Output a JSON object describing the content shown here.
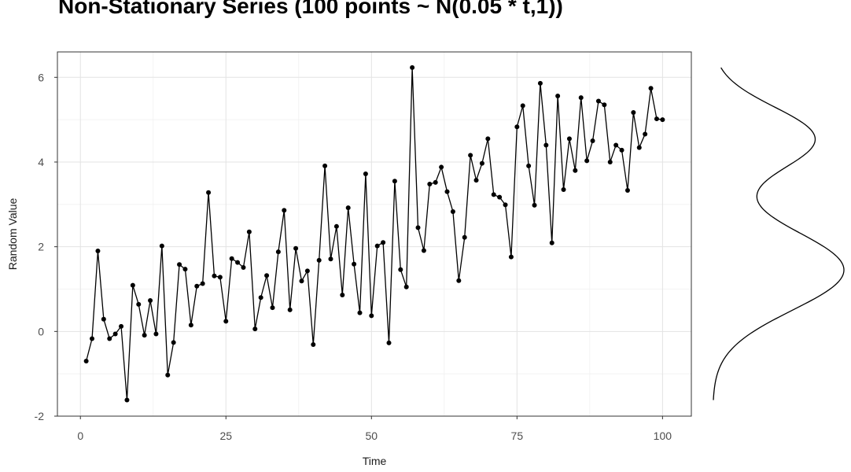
{
  "chart_data": {
    "type": "line",
    "title": "Non-Stationary Series (100 points ~ N(0.05 * t,1))",
    "xlabel": "Time",
    "ylabel": "Random Value",
    "xlim": [
      -3.95,
      104.95
    ],
    "ylim": [
      -2,
      6.6
    ],
    "x_ticks": [
      0,
      25,
      50,
      75,
      100
    ],
    "x_tick_labels": [
      "0",
      "25",
      "50",
      "75",
      "100"
    ],
    "y_ticks": [
      -2,
      0,
      2,
      4,
      6
    ],
    "y_tick_labels": [
      "-2",
      "0",
      "2",
      "4",
      "6"
    ],
    "grid": true,
    "markers": true,
    "series_color": "#000000",
    "x": [
      1,
      2,
      3,
      4,
      5,
      6,
      7,
      8,
      9,
      10,
      11,
      12,
      13,
      14,
      15,
      16,
      17,
      18,
      19,
      20,
      21,
      22,
      23,
      24,
      25,
      26,
      27,
      28,
      29,
      30,
      31,
      32,
      33,
      34,
      35,
      36,
      37,
      38,
      39,
      40,
      41,
      42,
      43,
      44,
      45,
      46,
      47,
      48,
      49,
      50,
      51,
      52,
      53,
      54,
      55,
      56,
      57,
      58,
      59,
      60,
      61,
      62,
      63,
      64,
      65,
      66,
      67,
      68,
      69,
      70,
      71,
      72,
      73,
      74,
      75,
      76,
      77,
      78,
      79,
      80,
      81,
      82,
      83,
      84,
      85,
      86,
      87,
      88,
      89,
      90,
      91,
      92,
      93,
      94,
      95,
      96,
      97,
      98,
      99,
      100
    ],
    "y": [
      -0.7,
      -0.17,
      1.9,
      0.29,
      -0.17,
      -0.06,
      0.12,
      -1.62,
      1.09,
      0.64,
      -0.09,
      0.73,
      -0.06,
      2.02,
      -1.03,
      -0.26,
      1.58,
      1.47,
      0.15,
      1.07,
      1.13,
      3.28,
      1.31,
      1.28,
      0.24,
      1.72,
      1.63,
      1.51,
      2.35,
      0.06,
      0.8,
      1.32,
      0.56,
      1.88,
      2.86,
      0.51,
      1.96,
      1.19,
      1.43,
      -0.31,
      1.68,
      3.91,
      1.71,
      2.48,
      0.86,
      2.92,
      1.59,
      0.44,
      3.72,
      0.37,
      2.02,
      2.1,
      -0.27,
      3.55,
      1.46,
      1.05,
      6.23,
      2.45,
      1.91,
      3.48,
      3.52,
      3.88,
      3.3,
      2.83,
      1.2,
      2.22,
      4.16,
      3.57,
      3.97,
      4.55,
      3.23,
      3.17,
      2.99,
      1.76,
      4.83,
      5.33,
      3.91,
      2.98,
      5.86,
      4.4,
      2.09,
      5.56,
      3.35,
      4.55,
      3.8,
      5.52,
      4.03,
      4.5,
      5.44,
      5.35,
      4.0,
      4.4,
      4.28,
      3.33,
      5.17,
      4.34,
      4.66,
      5.74,
      5.02,
      5.0
    ],
    "marginal_density": {
      "type": "density",
      "y_range": [
        -1.62,
        6.23
      ],
      "components": [
        {
          "mean": 1.45,
          "sd": 0.95,
          "weight": 0.62
        },
        {
          "mean": 4.55,
          "sd": 0.75,
          "weight": 0.38
        }
      ]
    }
  }
}
